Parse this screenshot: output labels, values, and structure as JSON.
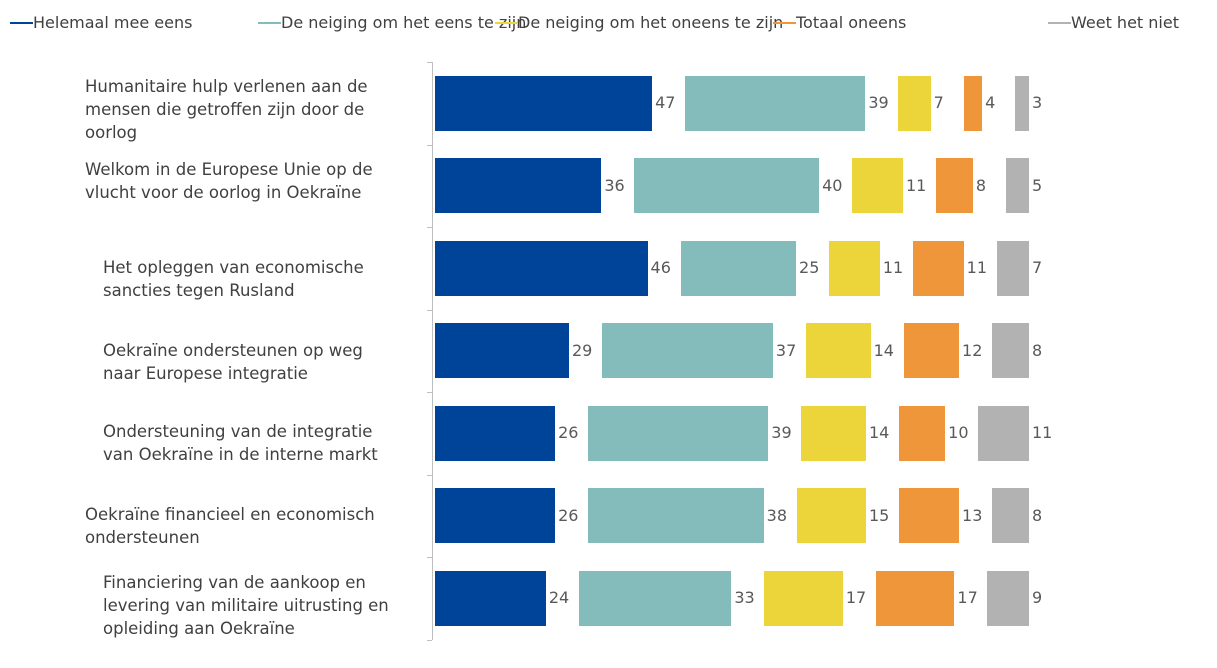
{
  "chart_data": {
    "type": "stacked-bar-horizontal",
    "categories": [
      "Humanitaire hulp verlenen aan de mensen die getroffen zijn door de oorlog",
      "Welkom in de Europese Unie op de vlucht voor de oorlog in Oekraïne",
      "Het opleggen van economische sancties tegen Rusland",
      "Oekraïne ondersteunen op weg naar Europese integratie",
      "Ondersteuning van de integratie van Oekraïne in de interne markt",
      "Oekraïne financieel en economisch ondersteunen",
      "Financiering van de aankoop en levering van militaire uitrusting en opleiding aan Oekraïne"
    ],
    "series": [
      {
        "name": "Helemaal mee eens",
        "color": "#00449a",
        "values": [
          47,
          36,
          46,
          29,
          26,
          26,
          24
        ]
      },
      {
        "name": "De neiging om het eens te zijn",
        "color": "#84bbbb",
        "values": [
          39,
          40,
          25,
          37,
          39,
          38,
          33
        ]
      },
      {
        "name": "De neiging om het oneens te zijn",
        "color": "#ecd53a",
        "values": [
          7,
          11,
          11,
          14,
          14,
          15,
          17
        ]
      },
      {
        "name": "Totaal oneens",
        "color": "#f0963a",
        "values": [
          4,
          8,
          11,
          12,
          10,
          13,
          17
        ]
      },
      {
        "name": "Weet het niet",
        "color": "#b2b2b2",
        "values": [
          3,
          5,
          7,
          8,
          11,
          8,
          9
        ]
      }
    ],
    "legend": "top"
  }
}
